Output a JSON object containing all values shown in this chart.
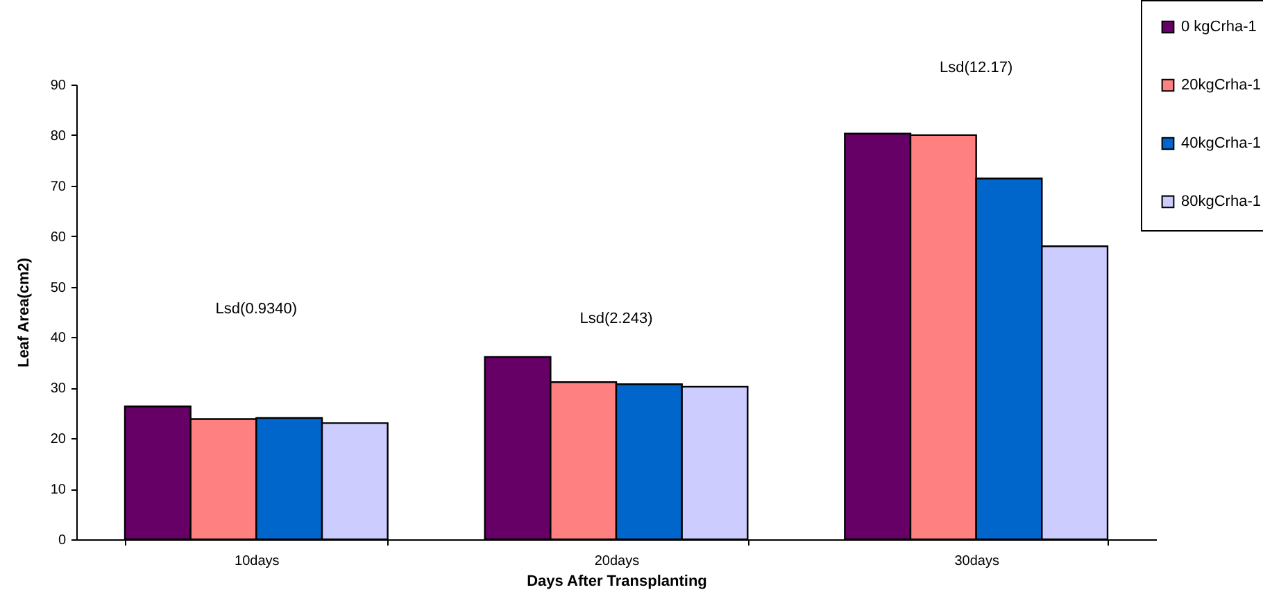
{
  "chart_data": {
    "type": "bar",
    "xlabel": "Days After Transplanting",
    "ylabel": "Leaf Area(cm2)",
    "categories": [
      "10days",
      "20days",
      "30days"
    ],
    "series": [
      {
        "name": "0 kgCrha-1",
        "color": "#660066",
        "values": [
          26.3,
          36.1,
          80.3
        ]
      },
      {
        "name": "20kgCrha-1",
        "color": "#ff8080",
        "values": [
          23.8,
          31.1,
          80.0
        ]
      },
      {
        "name": "40kgCrha-1",
        "color": "#0066cc",
        "values": [
          24.0,
          30.7,
          71.4
        ]
      },
      {
        "name": "80kgCrha-1",
        "color": "#ccccff",
        "values": [
          23.0,
          30.2,
          58.0
        ]
      }
    ],
    "ylim": [
      0,
      90
    ],
    "yticks": [
      0,
      10,
      20,
      30,
      40,
      50,
      60,
      70,
      80,
      90
    ],
    "annotations": [
      "Lsd(0.9340)",
      "Lsd(2.243)",
      "Lsd(12.17)"
    ],
    "grid": false,
    "legend": "top right"
  }
}
